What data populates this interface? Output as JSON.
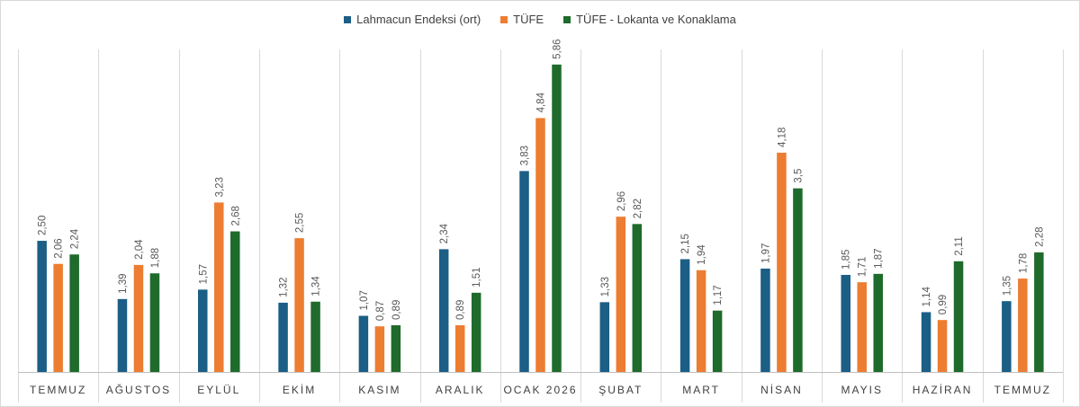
{
  "chart_data": {
    "type": "bar",
    "categories": [
      "TEMMUZ",
      "AĞUSTOS",
      "EYLÜL",
      "EKİM",
      "KASIM",
      "ARALIK",
      "OCAK 2026",
      "ŞUBAT",
      "MART",
      "NİSAN",
      "MAYIS",
      "HAZİRAN",
      "TEMMUZ"
    ],
    "series": [
      {
        "name": "Lahmacun Endeksi (ort)",
        "color": "#1b5e86",
        "values": [
          2.5,
          1.39,
          1.57,
          1.32,
          1.07,
          2.34,
          3.83,
          1.33,
          2.15,
          1.97,
          1.85,
          1.14,
          1.35
        ],
        "labels": [
          "2,50",
          "1,39",
          "1,57",
          "1,32",
          "1,07",
          "2,34",
          "3,83",
          "1,33",
          "2,15",
          "1,97",
          "1,85",
          "1,14",
          "1,35"
        ]
      },
      {
        "name": "TÜFE",
        "color": "#ed7d31",
        "values": [
          2.06,
          2.04,
          3.23,
          2.55,
          0.87,
          0.89,
          4.84,
          2.96,
          1.94,
          4.18,
          1.71,
          0.99,
          1.78
        ],
        "labels": [
          "2,06",
          "2,04",
          "3,23",
          "2,55",
          "0,87",
          "0,89",
          "4,84",
          "2,96",
          "1,94",
          "4,18",
          "1,71",
          "0,99",
          "1,78"
        ]
      },
      {
        "name": "TÜFE - Lokanta ve Konaklama",
        "color": "#1e6b2b",
        "values": [
          2.24,
          1.88,
          2.68,
          1.34,
          0.89,
          1.51,
          5.86,
          2.82,
          1.17,
          3.5,
          1.87,
          2.11,
          2.28
        ],
        "labels": [
          "2,24",
          "1,88",
          "2,68",
          "1,34",
          "0,89",
          "1,51",
          "5,86",
          "2,82",
          "1,17",
          "3,5",
          "1,87",
          "2,11",
          "2,28"
        ]
      }
    ],
    "ylim": [
      0,
      6.2
    ],
    "grid": "vertical category separators",
    "legend": "top-center"
  }
}
